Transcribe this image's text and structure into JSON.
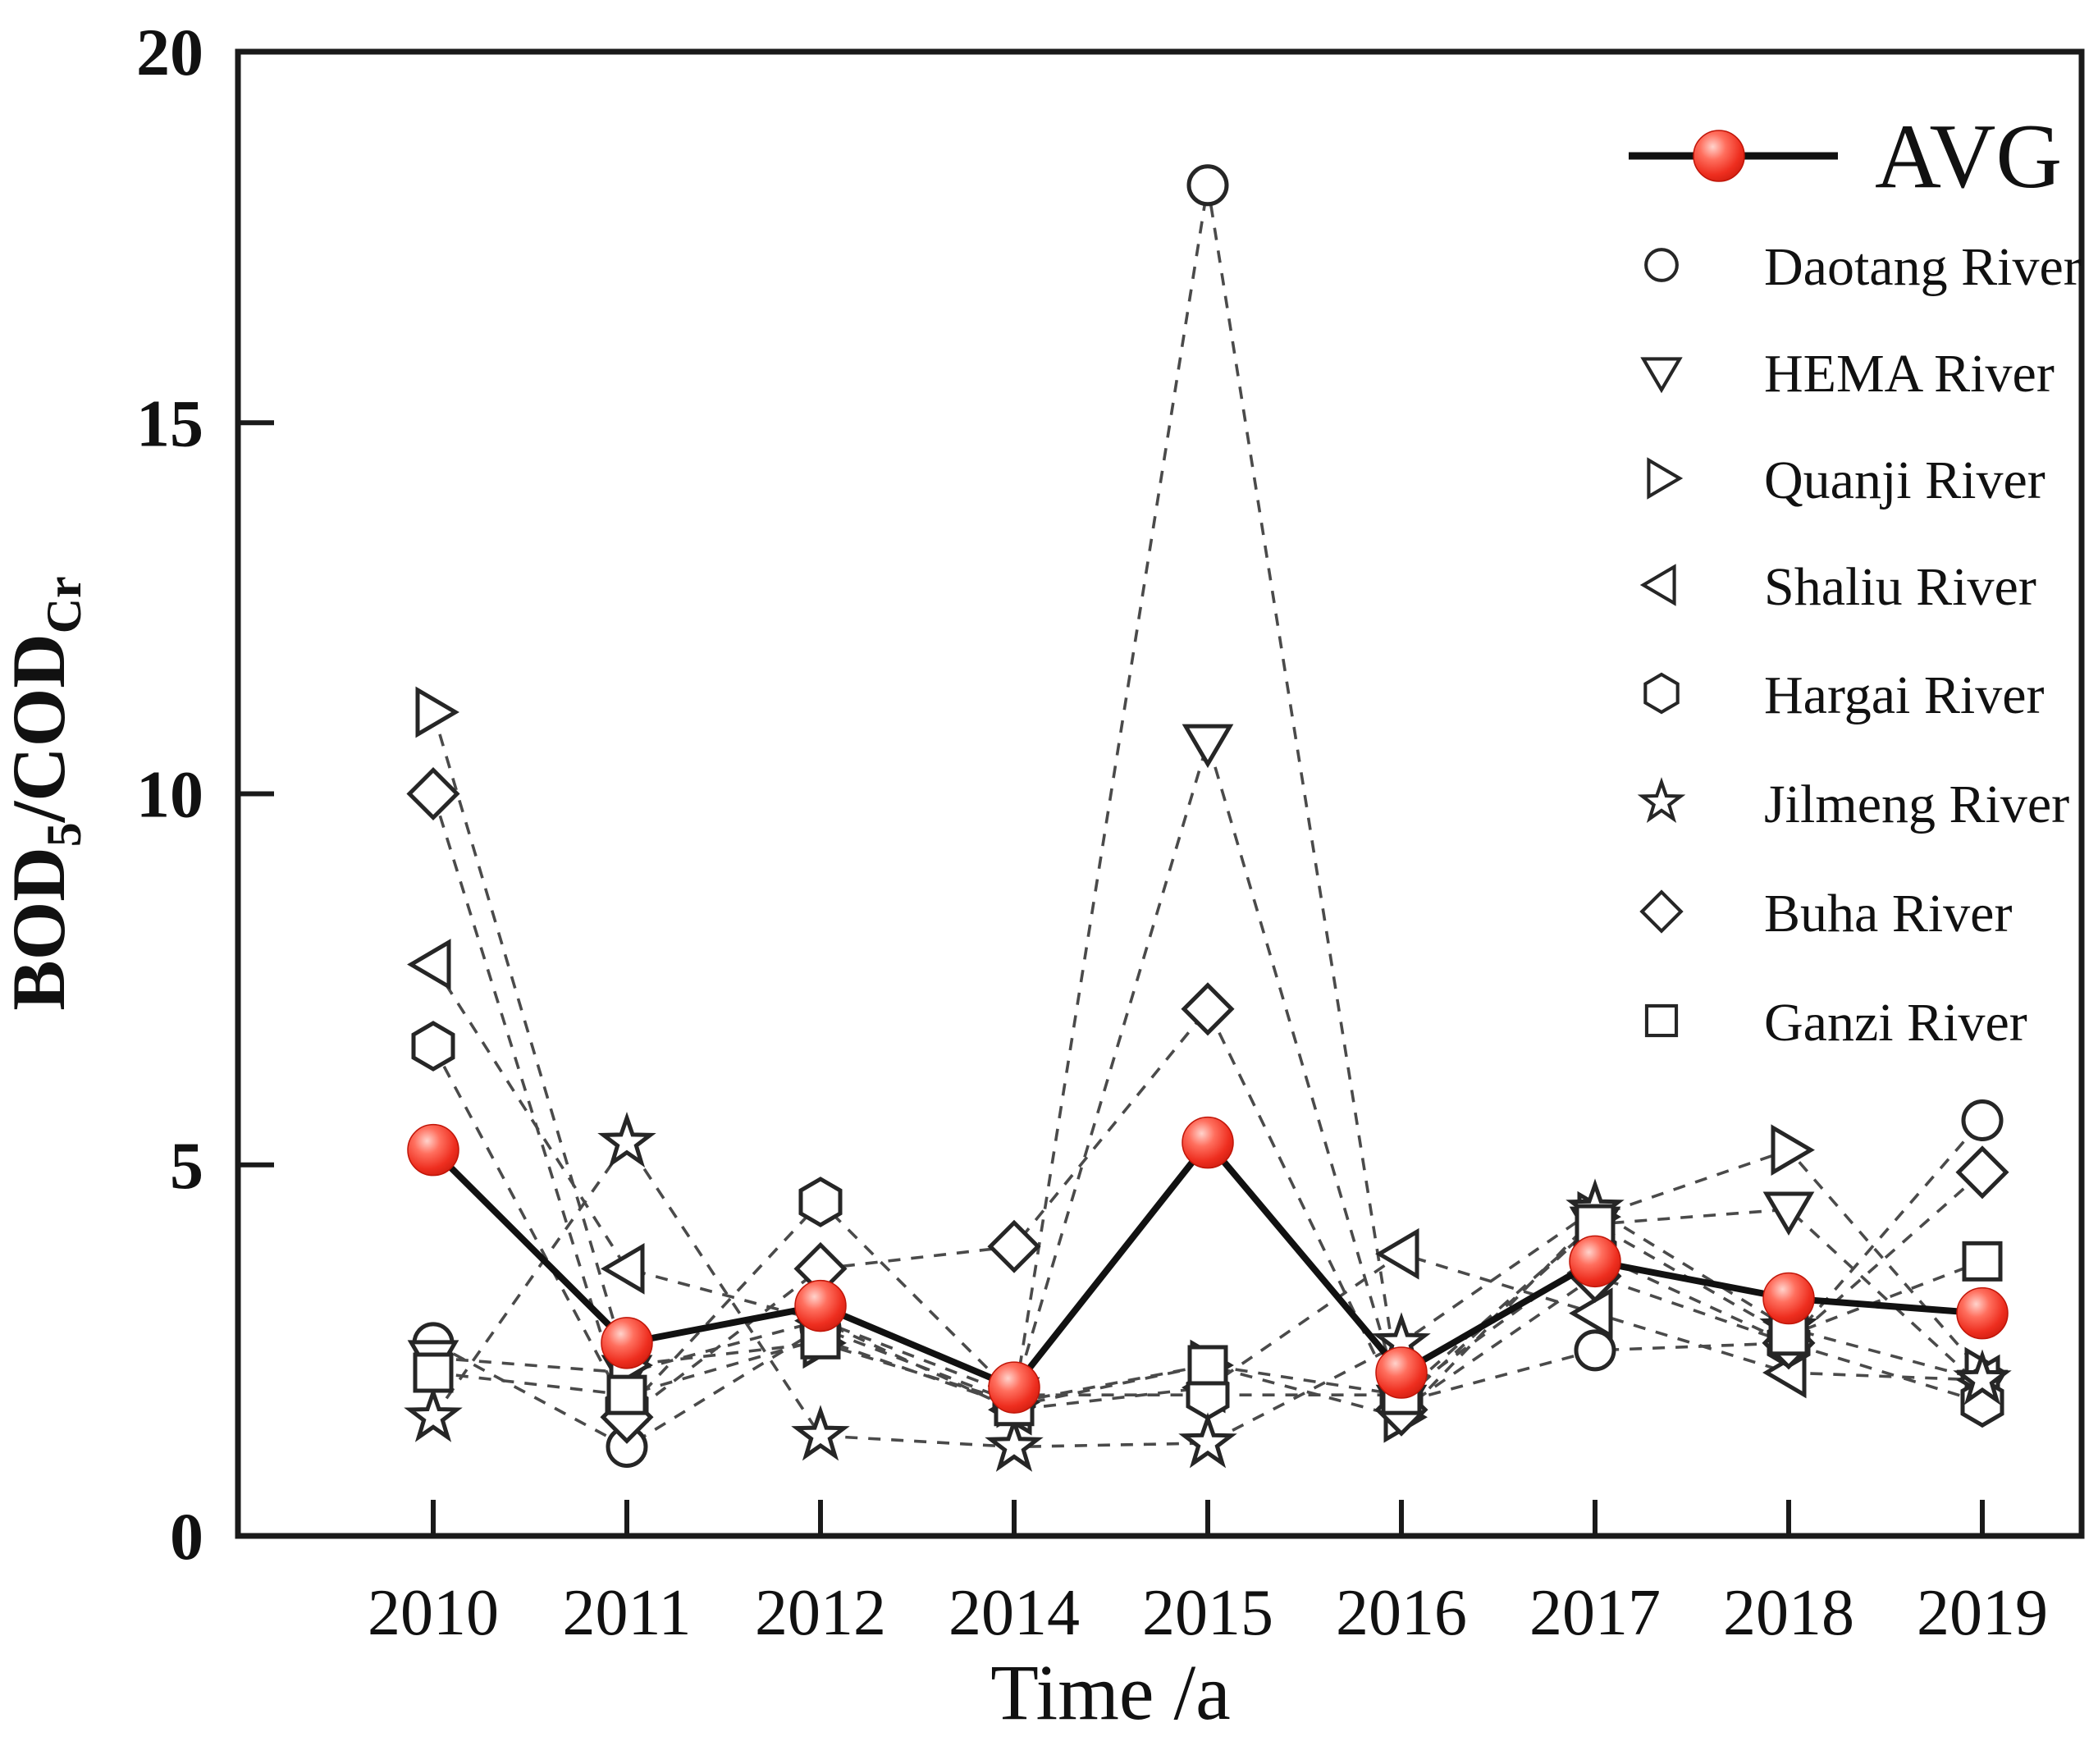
{
  "figure": {
    "background": "#ffffff",
    "description": "Line chart of BOD5/CODCr ratio by year for eight rivers plus average"
  },
  "chart_data": {
    "type": "line",
    "title": "",
    "xlabel": "Time /a",
    "ylabel": "BOD5/CODCr",
    "ylabel_parts": [
      {
        "text": "BOD",
        "sub": false
      },
      {
        "text": "5",
        "sub": true
      },
      {
        "text": "/COD",
        "sub": false
      },
      {
        "text": "Cr",
        "sub": true
      }
    ],
    "categories": [
      "2010",
      "2011",
      "2012",
      "2014",
      "2015",
      "2016",
      "2017",
      "2018",
      "2019"
    ],
    "yticks": [
      0,
      5,
      10,
      15,
      20
    ],
    "ylim": [
      0,
      20
    ],
    "grid": false,
    "legend_position": "top-right-inside",
    "colors": {
      "avg_ball": "#ee2e1f",
      "avg_ball_dark": "#c01508",
      "avg_ball_light": "#ffd3cc",
      "avg_line": "#111111",
      "marker_stroke": "#262626",
      "dashed_line": "#4a4a4a",
      "axis": "#1a1a1a"
    },
    "series": [
      {
        "name": "AVG",
        "marker": "ball",
        "line": "solid",
        "values": [
          5.2,
          2.6,
          3.1,
          2.0,
          5.3,
          2.2,
          3.7,
          3.2,
          3.0
        ]
      },
      {
        "name": "Daotang River",
        "marker": "circle",
        "line": "dashed",
        "values": [
          2.6,
          1.2,
          2.8,
          1.8,
          18.2,
          1.8,
          2.5,
          2.6,
          5.6
        ]
      },
      {
        "name": "HEMA River",
        "marker": "triangle-down",
        "line": "dashed",
        "values": [
          2.4,
          2.2,
          2.9,
          1.9,
          10.7,
          1.8,
          4.2,
          4.4,
          2.0
        ]
      },
      {
        "name": "Quanji River",
        "marker": "triangle-right",
        "line": "dashed",
        "values": [
          11.1,
          2.3,
          2.6,
          1.8,
          2.3,
          1.6,
          4.3,
          5.2,
          2.2
        ]
      },
      {
        "name": "Shaliu River",
        "marker": "triangle-left",
        "line": "dashed",
        "values": [
          7.7,
          3.6,
          2.9,
          1.7,
          2.0,
          3.8,
          3.0,
          2.2,
          2.1
        ]
      },
      {
        "name": "Hargai River",
        "marker": "hexagon",
        "line": "dashed",
        "values": [
          6.6,
          1.7,
          4.5,
          1.9,
          1.9,
          1.9,
          3.8,
          2.6,
          1.8
        ]
      },
      {
        "name": "Jilmeng River",
        "marker": "star",
        "line": "dashed",
        "values": [
          1.6,
          5.3,
          1.35,
          1.2,
          1.25,
          2.6,
          4.4,
          2.8,
          2.1
        ]
      },
      {
        "name": "Buha River",
        "marker": "diamond",
        "line": "dashed",
        "values": [
          10.0,
          1.6,
          3.6,
          3.9,
          7.1,
          1.7,
          3.5,
          2.6,
          4.9
        ]
      },
      {
        "name": "Ganzi River",
        "marker": "square",
        "line": "dashed",
        "values": [
          2.2,
          1.9,
          2.65,
          1.75,
          2.3,
          1.9,
          4.2,
          2.7,
          3.7
        ]
      }
    ]
  }
}
